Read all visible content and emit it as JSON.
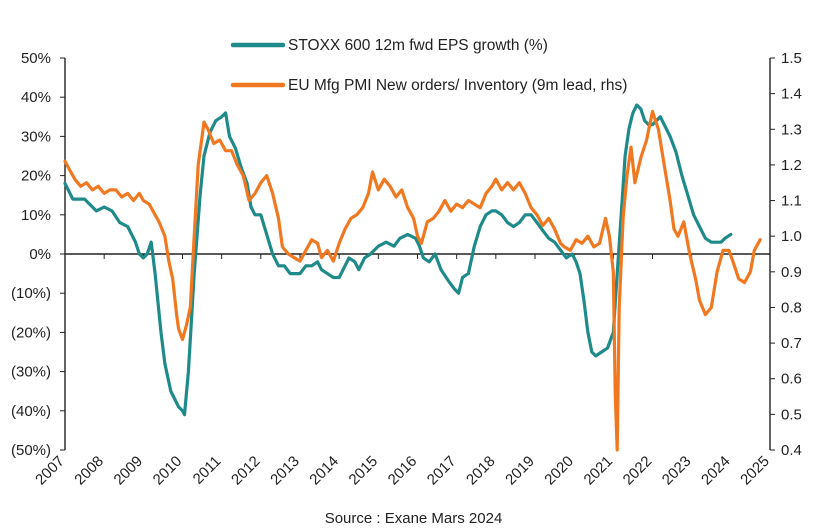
{
  "chart_data": {
    "type": "line",
    "title": "",
    "source": "Source : Exane Mars 2024",
    "x_ticks": [
      "2007",
      "2008",
      "2009",
      "2010",
      "2011",
      "2012",
      "2013",
      "2014",
      "2015",
      "2016",
      "2017",
      "2018",
      "2019",
      "2020",
      "2021",
      "2022",
      "2023",
      "2024",
      "2025"
    ],
    "y_left_ticks": [
      "50%",
      "40%",
      "30%",
      "20%",
      "10%",
      "0%",
      "(10%)",
      "(20%)",
      "(30%)",
      "(40%)",
      "(50%)"
    ],
    "y_right_ticks": [
      "1.5",
      "1.4",
      "1.3",
      "1.2",
      "1.1",
      "1.0",
      "0.9",
      "0.8",
      "0.7",
      "0.6",
      "0.5",
      "0.4"
    ],
    "ylim_left": [
      -50,
      50
    ],
    "ylim_right": [
      0.4,
      1.5
    ],
    "xlim": [
      2007,
      2025
    ],
    "legend_position": "top-center",
    "grid": false,
    "series": [
      {
        "name": "STOXX 600 12m fwd EPS growth (%)",
        "axis": "left",
        "color": "#1f8a8a",
        "points": [
          [
            2007.0,
            18
          ],
          [
            2007.2,
            14
          ],
          [
            2007.5,
            14
          ],
          [
            2007.8,
            11
          ],
          [
            2008.0,
            12
          ],
          [
            2008.2,
            11
          ],
          [
            2008.4,
            8
          ],
          [
            2008.6,
            7
          ],
          [
            2008.8,
            3
          ],
          [
            2008.9,
            0
          ],
          [
            2009.0,
            -1
          ],
          [
            2009.1,
            0
          ],
          [
            2009.2,
            3
          ],
          [
            2009.3,
            -5
          ],
          [
            2009.45,
            -20
          ],
          [
            2009.55,
            -28
          ],
          [
            2009.7,
            -35
          ],
          [
            2009.8,
            -37
          ],
          [
            2009.9,
            -39
          ],
          [
            2010.0,
            -40
          ],
          [
            2010.05,
            -41
          ],
          [
            2010.15,
            -30
          ],
          [
            2010.3,
            -5
          ],
          [
            2010.45,
            15
          ],
          [
            2010.55,
            25
          ],
          [
            2010.7,
            31
          ],
          [
            2010.85,
            34
          ],
          [
            2011.0,
            35
          ],
          [
            2011.1,
            36
          ],
          [
            2011.2,
            30
          ],
          [
            2011.35,
            27
          ],
          [
            2011.5,
            22
          ],
          [
            2011.65,
            18
          ],
          [
            2011.75,
            12
          ],
          [
            2011.85,
            10
          ],
          [
            2012.0,
            10
          ],
          [
            2012.15,
            5
          ],
          [
            2012.3,
            0
          ],
          [
            2012.45,
            -3
          ],
          [
            2012.6,
            -3
          ],
          [
            2012.75,
            -5
          ],
          [
            2013.0,
            -5
          ],
          [
            2013.15,
            -3
          ],
          [
            2013.3,
            -3
          ],
          [
            2013.45,
            -2
          ],
          [
            2013.55,
            -4
          ],
          [
            2013.7,
            -5
          ],
          [
            2013.85,
            -6
          ],
          [
            2014.0,
            -6
          ],
          [
            2014.15,
            -3
          ],
          [
            2014.25,
            -1
          ],
          [
            2014.4,
            -2
          ],
          [
            2014.5,
            -4
          ],
          [
            2014.65,
            -1
          ],
          [
            2014.8,
            0
          ],
          [
            2015.0,
            2
          ],
          [
            2015.2,
            3
          ],
          [
            2015.4,
            2
          ],
          [
            2015.55,
            4
          ],
          [
            2015.75,
            5
          ],
          [
            2015.95,
            4
          ],
          [
            2016.05,
            2
          ],
          [
            2016.15,
            -1
          ],
          [
            2016.3,
            -2
          ],
          [
            2016.45,
            0
          ],
          [
            2016.6,
            -4
          ],
          [
            2016.8,
            -7
          ],
          [
            2016.95,
            -9
          ],
          [
            2017.05,
            -10
          ],
          [
            2017.15,
            -6
          ],
          [
            2017.3,
            -5
          ],
          [
            2017.45,
            2
          ],
          [
            2017.6,
            7
          ],
          [
            2017.75,
            10
          ],
          [
            2017.9,
            11
          ],
          [
            2018.0,
            11
          ],
          [
            2018.15,
            10
          ],
          [
            2018.3,
            8
          ],
          [
            2018.45,
            7
          ],
          [
            2018.6,
            8
          ],
          [
            2018.75,
            10
          ],
          [
            2018.9,
            10
          ],
          [
            2019.05,
            8
          ],
          [
            2019.2,
            6
          ],
          [
            2019.35,
            4
          ],
          [
            2019.5,
            3
          ],
          [
            2019.65,
            1
          ],
          [
            2019.8,
            -1
          ],
          [
            2019.95,
            0
          ],
          [
            2020.05,
            -2
          ],
          [
            2020.15,
            -5
          ],
          [
            2020.25,
            -12
          ],
          [
            2020.35,
            -20
          ],
          [
            2020.45,
            -25
          ],
          [
            2020.55,
            -26
          ],
          [
            2020.7,
            -25
          ],
          [
            2020.85,
            -24
          ],
          [
            2021.0,
            -20
          ],
          [
            2021.1,
            -5
          ],
          [
            2021.2,
            10
          ],
          [
            2021.3,
            25
          ],
          [
            2021.4,
            32
          ],
          [
            2021.5,
            36
          ],
          [
            2021.6,
            38
          ],
          [
            2021.7,
            37
          ],
          [
            2021.8,
            34
          ],
          [
            2021.9,
            33
          ],
          [
            2022.0,
            33
          ],
          [
            2022.1,
            34
          ],
          [
            2022.2,
            35
          ],
          [
            2022.3,
            33
          ],
          [
            2022.45,
            30
          ],
          [
            2022.6,
            26
          ],
          [
            2022.75,
            20
          ],
          [
            2022.9,
            15
          ],
          [
            2023.05,
            10
          ],
          [
            2023.2,
            7
          ],
          [
            2023.35,
            4
          ],
          [
            2023.5,
            3
          ],
          [
            2023.65,
            3
          ],
          [
            2023.75,
            3
          ],
          [
            2023.85,
            4
          ],
          [
            2024.0,
            5
          ]
        ]
      },
      {
        "name": "EU Mfg PMI New orders/ Inventory (9m lead, rhs)",
        "axis": "right",
        "color": "#f07820",
        "points": [
          [
            2007.0,
            1.21
          ],
          [
            2007.1,
            1.19
          ],
          [
            2007.25,
            1.16
          ],
          [
            2007.4,
            1.14
          ],
          [
            2007.55,
            1.15
          ],
          [
            2007.7,
            1.13
          ],
          [
            2007.85,
            1.14
          ],
          [
            2008.0,
            1.12
          ],
          [
            2008.15,
            1.13
          ],
          [
            2008.3,
            1.13
          ],
          [
            2008.45,
            1.11
          ],
          [
            2008.6,
            1.12
          ],
          [
            2008.75,
            1.1
          ],
          [
            2008.9,
            1.12
          ],
          [
            2009.0,
            1.1
          ],
          [
            2009.15,
            1.09
          ],
          [
            2009.3,
            1.06
          ],
          [
            2009.4,
            1.04
          ],
          [
            2009.55,
            1.0
          ],
          [
            2009.65,
            0.93
          ],
          [
            2009.75,
            0.88
          ],
          [
            2009.85,
            0.78
          ],
          [
            2009.9,
            0.74
          ],
          [
            2010.0,
            0.71
          ],
          [
            2010.1,
            0.75
          ],
          [
            2010.2,
            0.8
          ],
          [
            2010.3,
            1.0
          ],
          [
            2010.4,
            1.2
          ],
          [
            2010.5,
            1.28
          ],
          [
            2010.55,
            1.32
          ],
          [
            2010.65,
            1.3
          ],
          [
            2010.8,
            1.26
          ],
          [
            2010.95,
            1.27
          ],
          [
            2011.1,
            1.24
          ],
          [
            2011.25,
            1.24
          ],
          [
            2011.4,
            1.2
          ],
          [
            2011.55,
            1.17
          ],
          [
            2011.7,
            1.1
          ],
          [
            2011.85,
            1.12
          ],
          [
            2012.0,
            1.15
          ],
          [
            2012.15,
            1.17
          ],
          [
            2012.3,
            1.12
          ],
          [
            2012.45,
            1.05
          ],
          [
            2012.55,
            0.97
          ],
          [
            2012.7,
            0.95
          ],
          [
            2012.85,
            0.94
          ],
          [
            2013.0,
            0.93
          ],
          [
            2013.15,
            0.96
          ],
          [
            2013.3,
            0.99
          ],
          [
            2013.45,
            0.98
          ],
          [
            2013.55,
            0.94
          ],
          [
            2013.7,
            0.96
          ],
          [
            2013.85,
            0.93
          ],
          [
            2014.0,
            0.98
          ],
          [
            2014.15,
            1.02
          ],
          [
            2014.3,
            1.05
          ],
          [
            2014.45,
            1.06
          ],
          [
            2014.6,
            1.08
          ],
          [
            2014.75,
            1.12
          ],
          [
            2014.85,
            1.18
          ],
          [
            2015.0,
            1.13
          ],
          [
            2015.15,
            1.16
          ],
          [
            2015.3,
            1.14
          ],
          [
            2015.45,
            1.11
          ],
          [
            2015.6,
            1.13
          ],
          [
            2015.75,
            1.08
          ],
          [
            2015.9,
            1.05
          ],
          [
            2016.0,
            1.0
          ],
          [
            2016.1,
            0.98
          ],
          [
            2016.25,
            1.04
          ],
          [
            2016.4,
            1.05
          ],
          [
            2016.55,
            1.07
          ],
          [
            2016.7,
            1.1
          ],
          [
            2016.85,
            1.07
          ],
          [
            2017.0,
            1.09
          ],
          [
            2017.15,
            1.08
          ],
          [
            2017.3,
            1.1
          ],
          [
            2017.45,
            1.09
          ],
          [
            2017.6,
            1.08
          ],
          [
            2017.75,
            1.12
          ],
          [
            2017.9,
            1.14
          ],
          [
            2018.0,
            1.16
          ],
          [
            2018.15,
            1.13
          ],
          [
            2018.3,
            1.15
          ],
          [
            2018.45,
            1.13
          ],
          [
            2018.6,
            1.15
          ],
          [
            2018.75,
            1.12
          ],
          [
            2018.9,
            1.08
          ],
          [
            2019.05,
            1.06
          ],
          [
            2019.2,
            1.03
          ],
          [
            2019.35,
            1.05
          ],
          [
            2019.5,
            1.02
          ],
          [
            2019.65,
            0.98
          ],
          [
            2019.75,
            0.97
          ],
          [
            2019.9,
            0.96
          ],
          [
            2020.05,
            0.99
          ],
          [
            2020.2,
            0.98
          ],
          [
            2020.35,
            1.0
          ],
          [
            2020.5,
            0.97
          ],
          [
            2020.65,
            0.98
          ],
          [
            2020.8,
            1.05
          ],
          [
            2020.9,
            1.0
          ],
          [
            2021.0,
            0.9
          ],
          [
            2021.05,
            0.55
          ],
          [
            2021.1,
            0.4
          ],
          [
            2021.15,
            0.8
          ],
          [
            2021.25,
            1.05
          ],
          [
            2021.35,
            1.17
          ],
          [
            2021.45,
            1.25
          ],
          [
            2021.55,
            1.15
          ],
          [
            2021.7,
            1.22
          ],
          [
            2021.85,
            1.27
          ],
          [
            2022.0,
            1.35
          ],
          [
            2022.15,
            1.3
          ],
          [
            2022.3,
            1.2
          ],
          [
            2022.45,
            1.1
          ],
          [
            2022.55,
            1.02
          ],
          [
            2022.65,
            1.0
          ],
          [
            2022.8,
            1.04
          ],
          [
            2022.95,
            0.95
          ],
          [
            2023.1,
            0.88
          ],
          [
            2023.2,
            0.82
          ],
          [
            2023.35,
            0.78
          ],
          [
            2023.5,
            0.8
          ],
          [
            2023.65,
            0.9
          ],
          [
            2023.8,
            0.96
          ],
          [
            2023.95,
            0.96
          ],
          [
            2024.05,
            0.93
          ],
          [
            2024.2,
            0.88
          ],
          [
            2024.35,
            0.87
          ],
          [
            2024.5,
            0.9
          ],
          [
            2024.6,
            0.96
          ],
          [
            2024.75,
            0.99
          ]
        ]
      }
    ]
  }
}
